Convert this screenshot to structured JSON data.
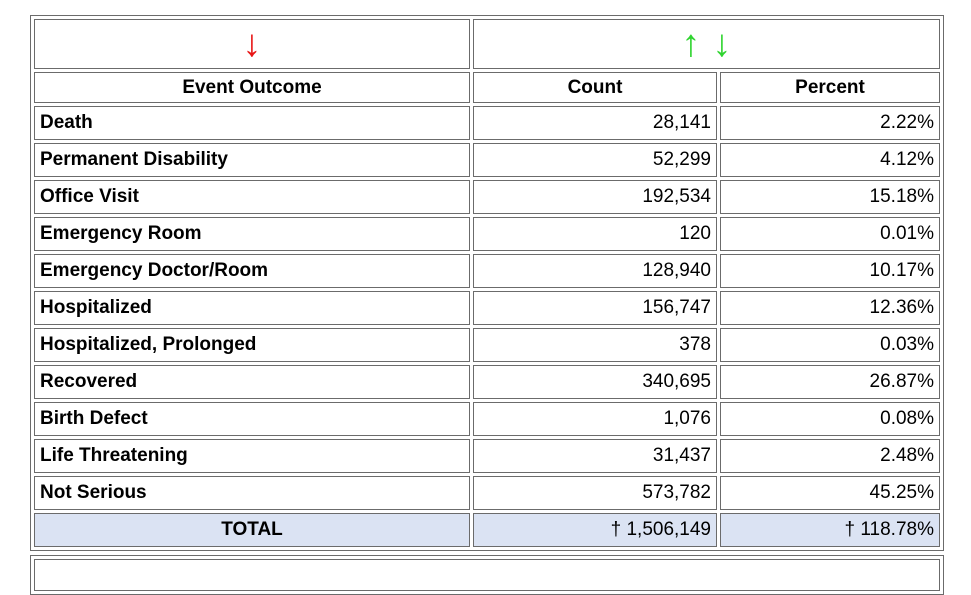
{
  "sort_controls": {
    "outcome_sort_icon": "↓",
    "count_sort_up_icon": "↑",
    "count_sort_down_icon": "↓"
  },
  "colors": {
    "outcome_sort_arrow": "#e81515",
    "value_sort_arrows": "#2fd42f",
    "total_row_background": "#dbe3f3",
    "table_border": "#6b6b6b"
  },
  "table": {
    "headers": {
      "outcome": "Event Outcome",
      "count": "Count",
      "percent": "Percent"
    },
    "rows": [
      {
        "label": "Death",
        "count": "28,141",
        "percent": "2.22%"
      },
      {
        "label": "Permanent Disability",
        "count": "52,299",
        "percent": "4.12%"
      },
      {
        "label": "Office Visit",
        "count": "192,534",
        "percent": "15.18%"
      },
      {
        "label": "Emergency Room",
        "count": "120",
        "percent": "0.01%"
      },
      {
        "label": "Emergency Doctor/Room",
        "count": "128,940",
        "percent": "10.17%"
      },
      {
        "label": "Hospitalized",
        "count": "156,747",
        "percent": "12.36%"
      },
      {
        "label": "Hospitalized, Prolonged",
        "count": "378",
        "percent": "0.03%"
      },
      {
        "label": "Recovered",
        "count": "340,695",
        "percent": "26.87%"
      },
      {
        "label": "Birth Defect",
        "count": "1,076",
        "percent": "0.08%"
      },
      {
        "label": "Life Threatening",
        "count": "31,437",
        "percent": "2.48%"
      },
      {
        "label": "Not Serious",
        "count": "573,782",
        "percent": "45.25%"
      }
    ],
    "total": {
      "label": "TOTAL",
      "count": "† 1,506,149",
      "percent": "† 118.78%"
    }
  },
  "chart_data": {
    "type": "table",
    "title": "Event Outcome counts and percents",
    "columns": [
      "Event Outcome",
      "Count",
      "Percent"
    ],
    "categories": [
      "Death",
      "Permanent Disability",
      "Office Visit",
      "Emergency Room",
      "Emergency Doctor/Room",
      "Hospitalized",
      "Hospitalized, Prolonged",
      "Recovered",
      "Birth Defect",
      "Life Threatening",
      "Not Serious"
    ],
    "series": [
      {
        "name": "Count",
        "values": [
          28141,
          52299,
          192534,
          120,
          128940,
          156747,
          378,
          340695,
          1076,
          31437,
          573782
        ]
      },
      {
        "name": "Percent",
        "values": [
          2.22,
          4.12,
          15.18,
          0.01,
          10.17,
          12.36,
          0.03,
          26.87,
          0.08,
          2.48,
          45.25
        ]
      }
    ],
    "total": {
      "count": 1506149,
      "percent": 118.78,
      "note": "†"
    }
  }
}
